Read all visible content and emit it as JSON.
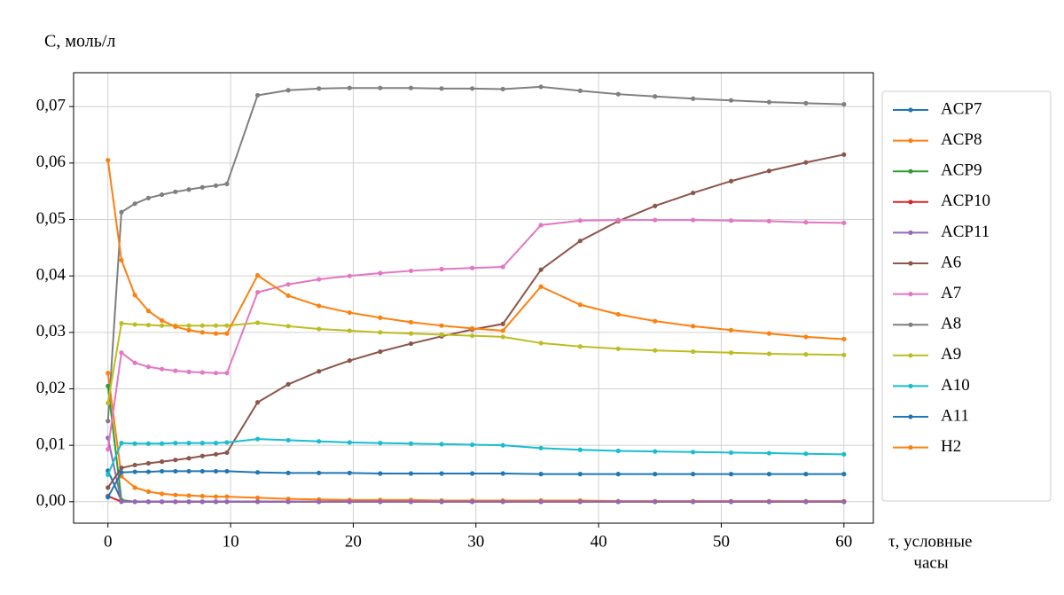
{
  "chart_data": {
    "type": "line",
    "y_label": "C, моль/л",
    "x_label": [
      "τ, условные",
      "часы"
    ],
    "x": [
      0,
      1.1,
      2.2,
      3.3,
      4.4,
      5.5,
      6.6,
      7.7,
      8.8,
      9.7,
      12.2,
      14.7,
      17.2,
      19.7,
      22.2,
      24.7,
      27.2,
      29.7,
      32.2,
      35.3,
      38.5,
      41.6,
      44.6,
      47.7,
      50.8,
      53.9,
      56.9,
      60
    ],
    "xlim": [
      -2.8,
      62.4
    ],
    "xticks": [
      0,
      10,
      20,
      30,
      40,
      50,
      60
    ],
    "ylim": [
      -0.0038,
      0.076
    ],
    "yticks": [
      {
        "value": 0,
        "label": "0,00"
      },
      {
        "value": 0.01,
        "label": "0,01"
      },
      {
        "value": 0.02,
        "label": "0,02"
      },
      {
        "value": 0.03,
        "label": "0,03"
      },
      {
        "value": 0.04,
        "label": "0,04"
      },
      {
        "value": 0.05,
        "label": "0,05"
      },
      {
        "value": 0.06,
        "label": "0,06"
      },
      {
        "value": 0.07,
        "label": "0,07"
      }
    ],
    "grid": true,
    "legend": "outside-right",
    "series": [
      {
        "name": "ACP7",
        "color": "#1f77b4",
        "values": [
          0.0055,
          0.0002,
          0,
          0,
          0,
          0,
          0,
          0,
          0,
          0,
          0,
          0,
          0,
          0,
          0,
          0,
          0,
          0,
          0,
          0,
          0,
          0,
          0,
          0,
          0,
          0,
          0,
          0
        ]
      },
      {
        "name": "ACP8",
        "color": "#ff7f0e",
        "values": [
          0.0228,
          0.0045,
          0.0025,
          0.0018,
          0.0014,
          0.0012,
          0.0011,
          0.001,
          0.0009,
          0.0009,
          0.0007,
          0.0005,
          0.0004,
          0.0003,
          0.0003,
          0.0003,
          0.0002,
          0.0002,
          0.0002,
          0.0002,
          0.0002,
          0.0001,
          0.0001,
          0.0001,
          0.0001,
          0.0001,
          0.0001,
          0.0001
        ]
      },
      {
        "name": "ACP9",
        "color": "#2ca02c",
        "values": [
          0.0205,
          0.0003,
          0,
          0,
          0,
          0,
          0,
          0,
          0,
          0,
          0,
          0,
          0,
          0,
          0,
          0,
          0,
          0,
          0,
          0,
          0,
          0,
          0,
          0,
          0,
          0,
          0,
          0
        ]
      },
      {
        "name": "ACP10",
        "color": "#d62728",
        "values": [
          0.001,
          0,
          0,
          0,
          0,
          0,
          0,
          0,
          0,
          0,
          0,
          0,
          0,
          0,
          0,
          0,
          0,
          0,
          0,
          0,
          0,
          0,
          0,
          0,
          0,
          0,
          0,
          0
        ]
      },
      {
        "name": "ACP11",
        "color": "#9467bd",
        "values": [
          0.0113,
          0,
          0,
          0,
          0,
          0,
          0,
          0,
          0,
          0,
          0,
          0,
          0,
          0,
          0,
          0,
          0,
          0,
          0,
          0,
          0,
          0,
          0,
          0,
          0,
          0,
          0,
          0
        ]
      },
      {
        "name": "A6",
        "color": "#8c564b",
        "values": [
          0.0025,
          0.006,
          0.0065,
          0.0068,
          0.0071,
          0.0074,
          0.0077,
          0.0081,
          0.0084,
          0.0087,
          0.0176,
          0.0208,
          0.0231,
          0.025,
          0.0266,
          0.028,
          0.0293,
          0.0305,
          0.0315,
          0.0411,
          0.0462,
          0.0497,
          0.0524,
          0.0547,
          0.0568,
          0.0586,
          0.0601,
          0.0615
        ]
      },
      {
        "name": "A7",
        "color": "#e377c2",
        "values": [
          0.0093,
          0.0264,
          0.0246,
          0.0239,
          0.0235,
          0.0232,
          0.023,
          0.0229,
          0.0228,
          0.0228,
          0.0371,
          0.0385,
          0.0394,
          0.04,
          0.0405,
          0.0409,
          0.0412,
          0.0414,
          0.0416,
          0.049,
          0.0498,
          0.0499,
          0.0499,
          0.0499,
          0.0498,
          0.0497,
          0.0495,
          0.0494
        ]
      },
      {
        "name": "A8",
        "color": "#7f7f7f",
        "values": [
          0.0143,
          0.0513,
          0.0528,
          0.0538,
          0.0544,
          0.0549,
          0.0553,
          0.0557,
          0.056,
          0.0563,
          0.072,
          0.0729,
          0.0732,
          0.0733,
          0.0733,
          0.0733,
          0.0732,
          0.0732,
          0.0731,
          0.0735,
          0.0728,
          0.0722,
          0.0718,
          0.0714,
          0.0711,
          0.0708,
          0.0706,
          0.0704
        ]
      },
      {
        "name": "A9",
        "color": "#bcbd22",
        "values": [
          0.0175,
          0.0316,
          0.0314,
          0.0313,
          0.0312,
          0.0312,
          0.0312,
          0.0312,
          0.0312,
          0.0312,
          0.0317,
          0.0311,
          0.0306,
          0.0303,
          0.03,
          0.0298,
          0.0296,
          0.0294,
          0.0292,
          0.0281,
          0.0275,
          0.0271,
          0.0268,
          0.0266,
          0.0264,
          0.0262,
          0.0261,
          0.026
        ]
      },
      {
        "name": "A10",
        "color": "#17becf",
        "values": [
          0.0048,
          0.0104,
          0.0103,
          0.0103,
          0.0103,
          0.0104,
          0.0104,
          0.0104,
          0.0104,
          0.0105,
          0.0111,
          0.0109,
          0.0107,
          0.0105,
          0.0104,
          0.0103,
          0.0102,
          0.0101,
          0.01,
          0.0095,
          0.0092,
          0.009,
          0.0089,
          0.0088,
          0.0087,
          0.0086,
          0.0085,
          0.0084
        ]
      },
      {
        "name": "A11",
        "color": "#1f77b4",
        "values": [
          0.0008,
          0.0052,
          0.0053,
          0.0053,
          0.0054,
          0.0054,
          0.0054,
          0.0054,
          0.0054,
          0.0054,
          0.0052,
          0.0051,
          0.0051,
          0.0051,
          0.005,
          0.005,
          0.005,
          0.005,
          0.005,
          0.0049,
          0.0049,
          0.0049,
          0.0049,
          0.0049,
          0.0049,
          0.0049,
          0.0049,
          0.0049
        ]
      },
      {
        "name": "H2",
        "color": "#ff7f0e",
        "values": [
          0.0605,
          0.0428,
          0.0366,
          0.0338,
          0.0321,
          0.031,
          0.0304,
          0.03,
          0.0298,
          0.0298,
          0.0401,
          0.0365,
          0.0347,
          0.0335,
          0.0326,
          0.0318,
          0.0312,
          0.0307,
          0.0303,
          0.0381,
          0.0349,
          0.0332,
          0.032,
          0.0311,
          0.0304,
          0.0298,
          0.0292,
          0.0288
        ]
      }
    ]
  }
}
